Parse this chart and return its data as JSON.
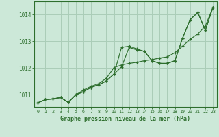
{
  "background_color": "#cce8d8",
  "grid_color": "#aacdb8",
  "line_color": "#2d6e2d",
  "marker_color": "#2d6e2d",
  "title": "Graphe pression niveau de la mer (hPa)",
  "xlim": [
    -0.5,
    23.5
  ],
  "ylim": [
    1010.55,
    1014.5
  ],
  "yticks": [
    1011,
    1012,
    1013,
    1014
  ],
  "xticks": [
    0,
    1,
    2,
    3,
    4,
    5,
    6,
    7,
    8,
    9,
    10,
    11,
    12,
    13,
    14,
    15,
    16,
    17,
    18,
    19,
    20,
    21,
    22,
    23
  ],
  "series": [
    [
      1010.7,
      1010.82,
      1010.85,
      1010.9,
      1010.72,
      1011.0,
      1011.12,
      1011.28,
      1011.38,
      1011.52,
      1011.78,
      1012.05,
      1012.78,
      1012.68,
      1012.63,
      1012.28,
      1012.18,
      1012.18,
      1012.28,
      1013.12,
      1013.82,
      1014.08,
      1013.42,
      1014.28
    ],
    [
      1010.7,
      1010.82,
      1010.85,
      1010.9,
      1010.72,
      1011.0,
      1011.12,
      1011.28,
      1011.38,
      1011.52,
      1011.78,
      1012.78,
      1012.82,
      1012.72,
      1012.62,
      1012.28,
      1012.18,
      1012.18,
      1012.28,
      1013.12,
      1013.82,
      1014.08,
      1013.42,
      1014.28
    ],
    [
      1010.7,
      1010.82,
      1010.85,
      1010.9,
      1010.72,
      1011.0,
      1011.18,
      1011.32,
      1011.42,
      1011.62,
      1012.02,
      1012.12,
      1012.18,
      1012.22,
      1012.28,
      1012.32,
      1012.38,
      1012.42,
      1012.58,
      1012.82,
      1013.08,
      1013.28,
      1013.58,
      1014.28
    ]
  ]
}
